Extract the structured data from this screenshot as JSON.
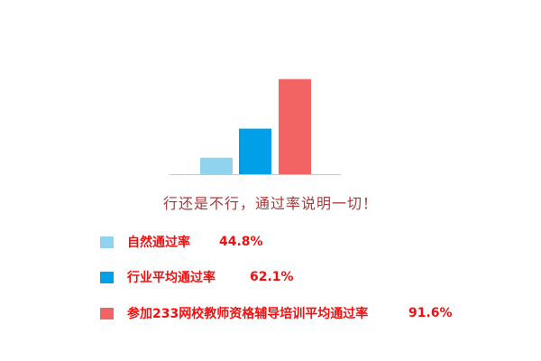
{
  "chart_data": {
    "type": "bar",
    "categories": [
      "自然通过率",
      "行业平均通过率",
      "参加233网校教师资格辅导培训平均通过率"
    ],
    "values": [
      44.8,
      62.1,
      91.6
    ],
    "value_labels": [
      "44.8%",
      "62.1%",
      "91.6%"
    ],
    "colors": [
      "#8fd3ef",
      "#00a0e9",
      "#f26464"
    ],
    "title": "",
    "caption": "行还是不行，通过率说明一切！",
    "xlabel": "",
    "ylabel": "",
    "ylim": [
      35,
      100
    ],
    "grid": false,
    "legend_placement": "bottom"
  }
}
